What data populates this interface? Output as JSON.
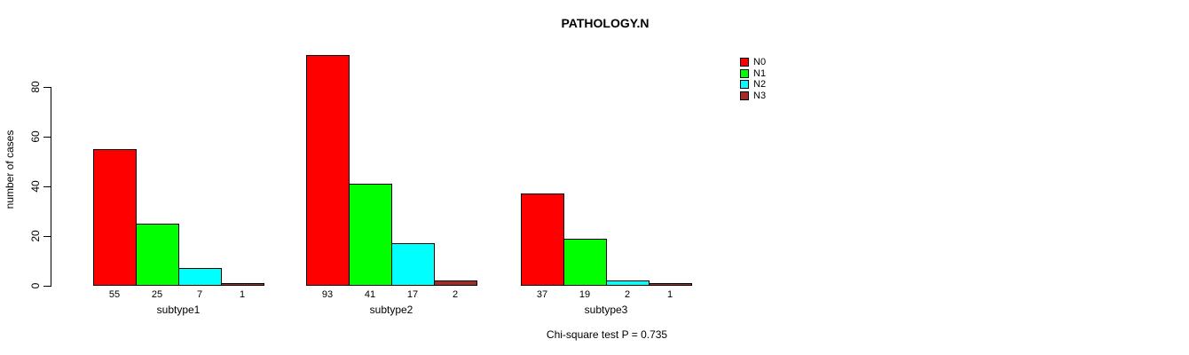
{
  "chart_data": {
    "type": "bar",
    "title": "PATHOLOGY.N",
    "xlabel": "",
    "ylabel": "number of cases",
    "categories": [
      "subtype1",
      "subtype2",
      "subtype3"
    ],
    "series": [
      {
        "name": "N0",
        "color": "#FF0000",
        "values": [
          55,
          93,
          37
        ]
      },
      {
        "name": "N1",
        "color": "#00FF00",
        "values": [
          25,
          41,
          19
        ]
      },
      {
        "name": "N2",
        "color": "#00FFFF",
        "values": [
          7,
          17,
          2
        ]
      },
      {
        "name": "N3",
        "color": "#A52A2A",
        "values": [
          1,
          2,
          1
        ]
      }
    ],
    "yticks": [
      0,
      20,
      40,
      60,
      80
    ],
    "ylim": [
      0,
      93
    ],
    "grid": false,
    "bar_value_labels": true,
    "legend": {
      "position": "top-right",
      "labels": [
        "N0",
        "N1",
        "N2",
        "N3"
      ]
    },
    "annotation": "Chi-square test P = 0.735",
    "axis_color": "#000000",
    "background_color": "#FFFFFF"
  }
}
